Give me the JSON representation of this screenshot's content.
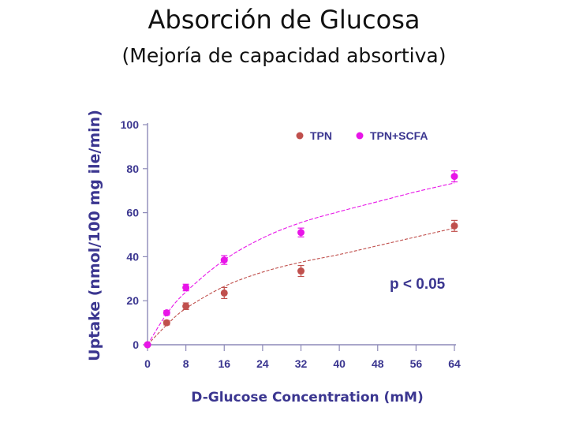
{
  "slide": {
    "title": "Absorción de Glucosa",
    "subtitle": "(Mejoría de capacidad absortiva)"
  },
  "chart_data": {
    "type": "scatter",
    "xlabel": "D-Glucose Concentration (mM)",
    "ylabel": "Uptake (nmol/100 mg ile/min)",
    "xlim": [
      0,
      64
    ],
    "ylim": [
      0,
      100
    ],
    "x_ticks": [
      "0",
      "8",
      "16",
      "24",
      "32",
      "40",
      "48",
      "56",
      "64"
    ],
    "y_ticks": [
      "0",
      "20",
      "40",
      "60",
      "80",
      "100"
    ],
    "annotation": "p < 0.05",
    "legend_position": "top-right",
    "grid": false,
    "series": [
      {
        "name": "TPN",
        "color": "#c0504d",
        "points": [
          {
            "x": 0,
            "y": 0,
            "err": 0
          },
          {
            "x": 4,
            "y": 10,
            "err": 1
          },
          {
            "x": 8,
            "y": 17.5,
            "err": 1.5
          },
          {
            "x": 16,
            "y": 23.5,
            "err": 2.5
          },
          {
            "x": 32,
            "y": 33.5,
            "err": 2.5
          },
          {
            "x": 64,
            "y": 54,
            "err": 2.5
          }
        ],
        "fit": [
          [
            0,
            0
          ],
          [
            4,
            9
          ],
          [
            8,
            16.5
          ],
          [
            16,
            26.5
          ],
          [
            24,
            33
          ],
          [
            32,
            37.5
          ],
          [
            40,
            41
          ],
          [
            48,
            45
          ],
          [
            56,
            49
          ],
          [
            64,
            53
          ]
        ]
      },
      {
        "name": "TPN+SCFA",
        "color": "#e815e8",
        "points": [
          {
            "x": 0,
            "y": 0,
            "err": 0
          },
          {
            "x": 4,
            "y": 14.5,
            "err": 1
          },
          {
            "x": 8,
            "y": 26,
            "err": 1.5
          },
          {
            "x": 16,
            "y": 38.5,
            "err": 2
          },
          {
            "x": 32,
            "y": 51,
            "err": 2
          },
          {
            "x": 64,
            "y": 76.5,
            "err": 2.5
          }
        ],
        "fit": [
          [
            0,
            0
          ],
          [
            4,
            14
          ],
          [
            8,
            24
          ],
          [
            16,
            38.5
          ],
          [
            24,
            48.5
          ],
          [
            32,
            55.5
          ],
          [
            40,
            60.5
          ],
          [
            48,
            65
          ],
          [
            56,
            69.5
          ],
          [
            64,
            73.5
          ]
        ]
      }
    ]
  }
}
